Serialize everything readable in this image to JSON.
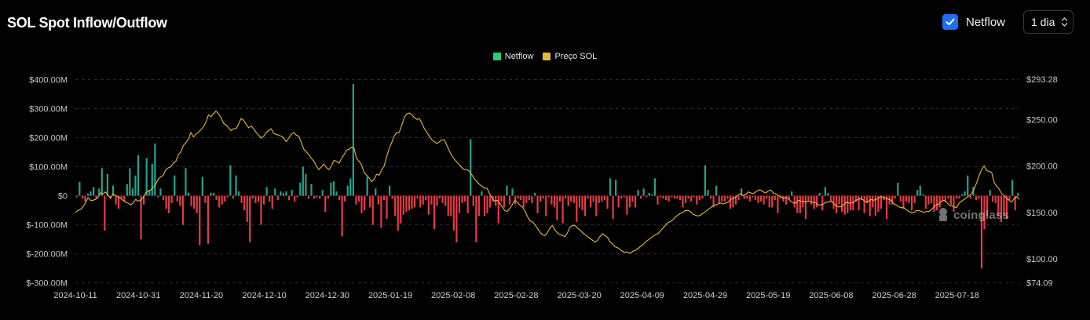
{
  "header": {
    "title": "SOL Spot Inflow/Outflow",
    "netflow_toggle_label": "Netflow",
    "netflow_checked": true,
    "interval_value": "1 dia"
  },
  "watermark": {
    "text": "coinglass"
  },
  "colors": {
    "positive": "#21a48d",
    "negative": "#ea3943",
    "price": "#e8b73c",
    "legend_netflow": "#2ecc71",
    "background": "#000000",
    "grid": "#2a2a2a"
  },
  "chart_data": {
    "type": "bar",
    "legend": [
      "Netflow",
      "Preço SOL"
    ],
    "series": [
      {
        "name": "Netflow",
        "axis": "left",
        "type": "bar",
        "unit": "USD"
      },
      {
        "name": "Preço SOL",
        "axis": "right",
        "type": "line",
        "unit": "USD"
      }
    ],
    "left_axis": {
      "ticks": [
        "$400.00M",
        "$300.00M",
        "$200.00M",
        "$100.00M",
        "$0",
        "$-100.00M",
        "$-200.00M",
        "$-300.00M"
      ],
      "ylim": [
        -300,
        400
      ],
      "unit": "M USD"
    },
    "right_axis": {
      "ticks": [
        "$293.28",
        "$250.00",
        "$200.00",
        "$150.00",
        "$100.00",
        "$74.09"
      ],
      "ylim": [
        74.09,
        293.28
      ]
    },
    "x_ticks": [
      "2024-10-11",
      "2024-10-31",
      "2024-11-20",
      "2024-12-10",
      "2024-12-30",
      "2025-01-19",
      "2025-02-08",
      "2025-02-28",
      "2025-03-20",
      "2025-04-09",
      "2025-04-29",
      "2025-05-19",
      "2025-06-08",
      "2025-06-28",
      "2025-07-18"
    ],
    "grid": true,
    "netflow_millions": [
      -5,
      48,
      -10,
      -20,
      8,
      15,
      30,
      -12,
      25,
      95,
      -120,
      75,
      -8,
      35,
      -30,
      -45,
      -10,
      -20,
      40,
      95,
      25,
      70,
      140,
      -150,
      -30,
      130,
      20,
      110,
      180,
      -5,
      25,
      -15,
      -45,
      -60,
      -25,
      70,
      -20,
      -35,
      -100,
      95,
      10,
      -35,
      -45,
      -60,
      -170,
      65,
      -25,
      -165,
      10,
      10,
      -15,
      -40,
      -30,
      -20,
      -5,
      105,
      -10,
      70,
      15,
      -25,
      -50,
      -90,
      -160,
      -10,
      -25,
      -20,
      -100,
      -30,
      30,
      -20,
      -45,
      25,
      -15,
      15,
      10,
      15,
      -15,
      20,
      -20,
      -5,
      45,
      100,
      75,
      -10,
      40,
      -10,
      -5,
      -10,
      20,
      -55,
      -10,
      45,
      50,
      15,
      -15,
      -140,
      -20,
      35,
      60,
      385,
      -30,
      -20,
      -60,
      -50,
      65,
      -40,
      -100,
      25,
      -30,
      -110,
      -15,
      -80,
      35,
      -10,
      -70,
      -120,
      -95,
      -65,
      -55,
      -50,
      -45,
      -40,
      -10,
      -40,
      -30,
      -15,
      -65,
      -30,
      -115,
      -35,
      -10,
      -25,
      -35,
      -70,
      -70,
      -120,
      -160,
      -60,
      -25,
      -20,
      -60,
      195,
      -35,
      -160,
      -70,
      15,
      -70,
      -60,
      -40,
      -20,
      -35,
      -95,
      -20,
      -40,
      35,
      -30,
      25,
      -30,
      -10,
      -15,
      -40,
      -25,
      -15,
      -25,
      10,
      -60,
      -20,
      -10,
      -70,
      -5,
      -30,
      -40,
      -85,
      -20,
      -95,
      -10,
      -35,
      -20,
      -25,
      -90,
      -40,
      -50,
      -70,
      -10,
      -40,
      -20,
      -70,
      -25,
      -20,
      -15,
      -45,
      60,
      -80,
      55,
      -40,
      -10,
      -5,
      -65,
      -40,
      -20,
      -40,
      20,
      -10,
      25,
      -5,
      10,
      5,
      60,
      -30,
      -5,
      -10,
      -15,
      -20,
      -5,
      -10,
      -10,
      -15,
      -40,
      -25,
      -10,
      -20,
      -5,
      -30,
      -15,
      -10,
      105,
      20,
      -10,
      -40,
      35,
      -25,
      -20,
      -20,
      -10,
      -45,
      -40,
      -30,
      -15,
      25,
      -10,
      -10,
      -20,
      -5,
      -15,
      -25,
      -20,
      -30,
      -10,
      -40,
      -40,
      -15,
      -60,
      -10,
      -20,
      -30,
      -15,
      15,
      -40,
      -60,
      -60,
      -40,
      -80,
      -20,
      -30,
      -45,
      -40,
      10,
      -50,
      30,
      10,
      -20,
      -45,
      -60,
      -30,
      -55,
      -65,
      -60,
      -50,
      -50,
      -20,
      -50,
      -15,
      -60,
      -25,
      -70,
      -40,
      -70,
      -55,
      -45,
      -15,
      -80,
      -30,
      -30,
      -10,
      45,
      -20,
      -45,
      -20,
      -25,
      -50,
      -25,
      20,
      35,
      5,
      -45,
      -30,
      -25,
      -55,
      -50,
      -40,
      -20,
      -20,
      -10,
      -30,
      -55,
      -10,
      -10,
      5,
      15,
      70,
      -10,
      30,
      -15,
      -10,
      -250,
      -115,
      -70,
      20,
      -20,
      -25,
      -70,
      -90,
      -70,
      -80,
      -15,
      55,
      -50,
      10
    ],
    "price_usd": [
      150,
      152,
      153,
      156,
      160,
      166,
      163,
      163,
      164,
      166,
      171,
      170,
      172,
      168,
      165,
      170,
      168,
      167,
      165,
      163,
      161,
      160,
      158,
      160,
      164,
      162,
      163,
      166,
      171,
      173,
      174,
      177,
      180,
      186,
      188,
      190,
      196,
      198,
      199,
      203,
      205,
      212,
      215,
      222,
      225,
      229,
      236,
      231,
      234,
      236,
      239,
      242,
      247,
      255,
      253,
      256,
      259,
      256,
      252,
      246,
      244,
      241,
      238,
      240,
      240,
      245,
      251,
      249,
      245,
      241,
      243,
      240,
      236,
      233,
      230,
      232,
      236,
      238,
      240,
      235,
      234,
      233,
      232,
      230,
      226,
      230,
      234,
      236,
      233,
      232,
      225,
      218,
      215,
      212,
      208,
      205,
      200,
      196,
      199,
      202,
      198,
      196,
      200,
      206,
      205,
      203,
      208,
      212,
      217,
      218,
      220,
      219,
      208,
      205,
      201,
      193,
      190,
      187,
      183,
      186,
      191,
      190,
      196,
      200,
      210,
      219,
      225,
      232,
      236,
      236,
      244,
      252,
      256,
      257,
      255,
      252,
      250,
      251,
      246,
      240,
      236,
      232,
      228,
      226,
      224,
      226,
      228,
      228,
      222,
      216,
      211,
      207,
      204,
      201,
      198,
      196,
      196,
      194,
      190,
      186,
      183,
      180,
      178,
      176,
      176,
      170,
      165,
      162,
      163,
      160,
      156,
      152,
      151,
      154,
      158,
      163,
      161,
      158,
      156,
      152,
      146,
      141,
      140,
      137,
      133,
      129,
      126,
      125,
      128,
      133,
      136,
      131,
      128,
      126,
      125,
      124,
      128,
      134,
      136,
      136,
      133,
      131,
      128,
      126,
      124,
      122,
      120,
      118,
      120,
      124,
      127,
      125,
      123,
      118,
      116,
      113,
      112,
      110,
      108,
      107,
      107,
      106,
      108,
      109,
      111,
      113,
      115,
      118,
      120,
      122,
      124,
      126,
      127,
      130,
      133,
      136,
      139,
      140,
      142,
      145,
      147,
      149,
      150,
      152,
      152,
      151,
      148,
      147,
      146,
      147,
      149,
      151,
      153,
      155,
      157,
      158,
      159,
      160,
      159,
      160,
      161,
      164,
      165,
      166,
      169,
      170,
      168,
      169,
      172,
      171,
      170,
      172,
      174,
      174,
      172,
      171,
      173,
      174,
      171,
      170,
      168,
      167,
      165,
      166,
      165,
      162,
      160,
      160,
      163,
      162,
      162,
      161,
      162,
      161,
      161,
      160,
      158,
      158,
      159,
      161,
      161,
      162,
      160,
      157,
      156,
      156,
      158,
      161,
      160,
      160,
      161,
      163,
      164,
      165,
      163,
      161,
      162,
      164,
      163,
      164,
      166,
      167,
      166,
      165,
      164,
      163,
      159,
      158,
      156,
      155,
      155,
      153,
      151,
      150,
      150,
      152,
      152,
      151,
      150,
      151,
      151,
      153,
      156,
      158,
      159,
      162,
      163,
      161,
      158,
      157,
      156,
      155,
      160,
      162,
      164,
      166,
      168,
      170,
      175,
      182,
      190,
      196,
      200,
      195,
      194,
      193,
      182,
      178,
      175,
      170,
      168,
      165,
      163,
      161,
      165,
      167,
      164
    ]
  }
}
